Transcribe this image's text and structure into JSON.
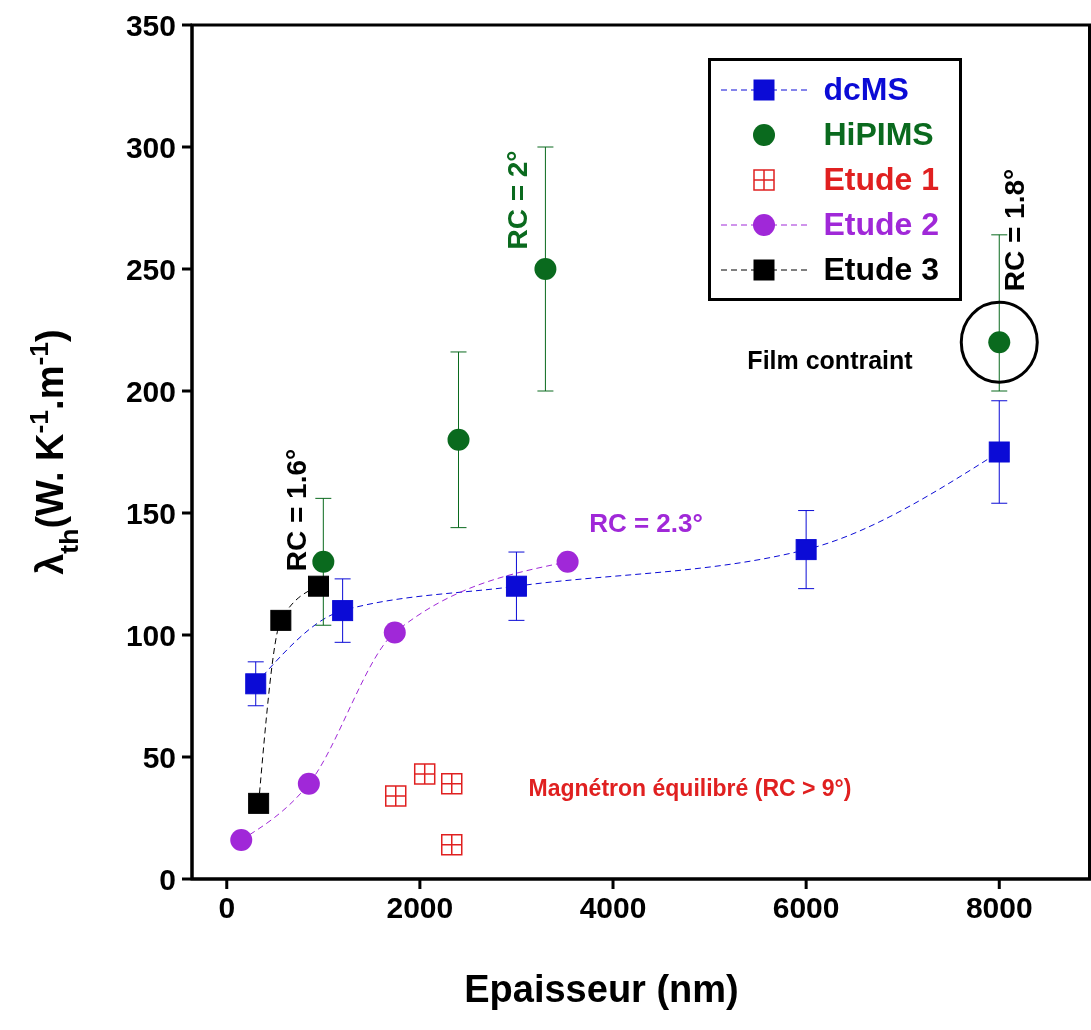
{
  "chart_data": {
    "type": "line",
    "xlabel": "Epaisseur (nm)",
    "ylabel": "λ$_{th}$(W. K$^{-1}$.m$^{-1}$)",
    "xlim": [
      -360,
      8950
    ],
    "xticks": [
      0,
      2000,
      4000,
      6000,
      8000
    ],
    "ylim": [
      0,
      350
    ],
    "yticks": [
      0,
      50,
      100,
      150,
      200,
      250,
      300,
      350
    ],
    "grid": false,
    "legend": "top right",
    "series": [
      {
        "name": "dcMS",
        "color": "#0b0bd6",
        "marker": "square",
        "line_style": "dashed",
        "x": [
          300,
          1200,
          3000,
          6000,
          8000
        ],
        "values": [
          80,
          110,
          120,
          135,
          175
        ],
        "errors": [
          9,
          13,
          14,
          16,
          21
        ]
      },
      {
        "name": "HiPIMS",
        "type": "scatter",
        "color": "#0a6a1e",
        "marker": "circle",
        "x": [
          1000,
          2400,
          3300,
          8000
        ],
        "values": [
          130,
          180,
          250,
          220
        ],
        "errors": [
          26,
          36,
          50,
          [
            200,
            264
          ]
        ]
      },
      {
        "name": "Etude 1",
        "type": "scatter",
        "color": "#e02020",
        "marker": "cross",
        "x": [
          1750,
          2050,
          2330,
          2330
        ],
        "values": [
          34,
          43,
          39,
          14
        ]
      },
      {
        "name": "Etude 2",
        "color": "#a028d8",
        "marker": "circle",
        "line_style": "dashed",
        "x": [
          150,
          850,
          1740,
          3530
        ],
        "values": [
          16,
          39,
          101,
          130
        ]
      },
      {
        "name": "Etude 3",
        "color": "#000000",
        "marker": "square",
        "line_style": "dashed",
        "x": [
          330,
          560,
          950
        ],
        "values": [
          31,
          106,
          120
        ]
      }
    ],
    "annotations": [
      "RC = 2°",
      "RC = 1.8°",
      "Film contraint",
      "RC = 1.6°",
      "RC = 2.3°",
      "Magnétron équilibré (RC > 9°)"
    ]
  }
}
